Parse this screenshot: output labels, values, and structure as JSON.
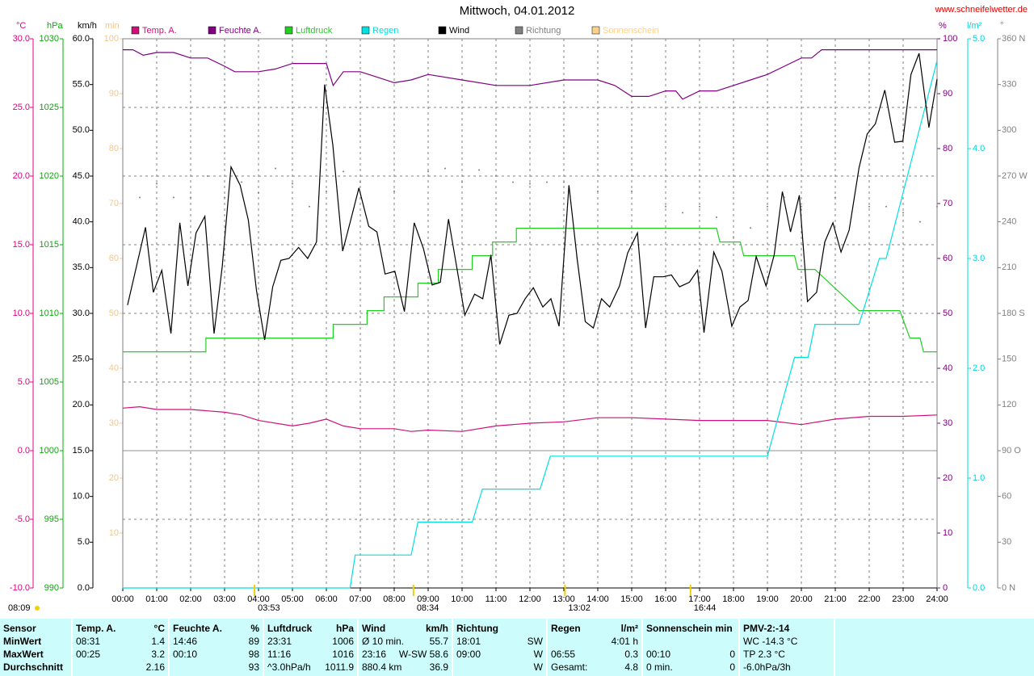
{
  "chart_data": {
    "type": "line",
    "title": "Mittwoch, 04.01.2012",
    "source": "www.schneifelwetter.de",
    "sunrise": "08:09",
    "xlim": [
      0,
      24
    ],
    "xticks": [
      {
        "value": 0,
        "label": "00:00"
      },
      {
        "value": 1,
        "label": "01:00"
      },
      {
        "value": 2,
        "label": "02:00"
      },
      {
        "value": 3,
        "label": "03:00"
      },
      {
        "value": 4,
        "label": "04:00"
      },
      {
        "value": 5,
        "label": "05:00"
      },
      {
        "value": 6,
        "label": "06:00"
      },
      {
        "value": 7,
        "label": "07:00"
      },
      {
        "value": 8,
        "label": "08:00"
      },
      {
        "value": 9,
        "label": "09:00"
      },
      {
        "value": 10,
        "label": "10:00"
      },
      {
        "value": 11,
        "label": "11:00"
      },
      {
        "value": 12,
        "label": "12:00"
      },
      {
        "value": 13,
        "label": "13:00"
      },
      {
        "value": 14,
        "label": "14:00"
      },
      {
        "value": 15,
        "label": "15:00"
      },
      {
        "value": 16,
        "label": "16:00"
      },
      {
        "value": 17,
        "label": "17:00"
      },
      {
        "value": 18,
        "label": "18:00"
      },
      {
        "value": 19,
        "label": "19:00"
      },
      {
        "value": 20,
        "label": "20:00"
      },
      {
        "value": 21,
        "label": "21:00"
      },
      {
        "value": 22,
        "label": "22:00"
      },
      {
        "value": 23,
        "label": "23:00"
      },
      {
        "value": 24,
        "label": "24:00"
      }
    ],
    "grid": true,
    "axes": [
      {
        "unit": "°C",
        "color": "#e0007f",
        "lim": [
          -10,
          30
        ],
        "ticks": [
          {
            "value": 30,
            "label": "30.0"
          },
          {
            "value": 25,
            "label": "25.0"
          },
          {
            "value": 20,
            "label": "20.0"
          },
          {
            "value": 15,
            "label": "15.0"
          },
          {
            "value": 10,
            "label": "10.0"
          },
          {
            "value": 5,
            "label": "5.0"
          },
          {
            "value": 0,
            "label": "0.0"
          },
          {
            "value": -5,
            "label": "-5.0"
          },
          {
            "value": -10,
            "label": "-10.0"
          }
        ]
      },
      {
        "unit": "hPa",
        "color": "#00b000",
        "lim": [
          990,
          1030
        ],
        "ticks": [
          1030,
          1025,
          1020,
          1015,
          1010,
          1005,
          1000,
          995,
          990
        ]
      },
      {
        "unit": "km/h",
        "color": "#000000",
        "lim": [
          0,
          60
        ],
        "ticks": [
          {
            "value": 60,
            "label": "60.0"
          },
          {
            "value": 55,
            "label": "55.0"
          },
          {
            "value": 50,
            "label": "50.0"
          },
          {
            "value": 45,
            "label": "45.0"
          },
          {
            "value": 40,
            "label": "40.0"
          },
          {
            "value": 35,
            "label": "35.0"
          },
          {
            "value": 30,
            "label": "30.0"
          },
          {
            "value": 25,
            "label": "25.0"
          },
          {
            "value": 20,
            "label": "20.0"
          },
          {
            "value": 15,
            "label": "15.0"
          },
          {
            "value": 10,
            "label": "10.0"
          },
          {
            "value": 5,
            "label": "5.0"
          },
          {
            "value": 0,
            "label": "0.0"
          }
        ]
      },
      {
        "unit": "min",
        "color": "#f0c890",
        "lim": [
          0,
          100
        ],
        "ticks": [
          100,
          90,
          80,
          70,
          60,
          50,
          40,
          30,
          20,
          10
        ]
      },
      {
        "unit": "%",
        "color": "#800080",
        "lim": [
          0,
          100
        ],
        "ticks": [
          100,
          90,
          80,
          70,
          60,
          50,
          40,
          30,
          20,
          10,
          0
        ]
      },
      {
        "unit": "l/m²",
        "color": "#00d8d8",
        "lim": [
          0,
          5
        ],
        "ticks": [
          {
            "value": 5,
            "label": "5.0"
          },
          {
            "value": 4,
            "label": "4.0"
          },
          {
            "value": 3,
            "label": "3.0"
          },
          {
            "value": 2,
            "label": "2.0"
          },
          {
            "value": 1,
            "label": "1.0"
          },
          {
            "value": 0,
            "label": "0.0"
          }
        ]
      },
      {
        "unit": "°",
        "color": "#808080",
        "lim": [
          0,
          360
        ],
        "ticks": [
          {
            "value": 360,
            "label": "360 N"
          },
          330,
          300,
          {
            "value": 270,
            "label": "270 W"
          },
          240,
          210,
          {
            "value": 180,
            "label": "180 S"
          },
          150,
          120,
          {
            "value": 90,
            "label": "90 O"
          },
          60,
          30,
          {
            "value": 0,
            "label": "0 N"
          }
        ]
      }
    ],
    "series": [
      {
        "name": "Temp. A.",
        "color": "#d0107a",
        "axis": "°C",
        "style": "line",
        "x": [
          0,
          0.5,
          1,
          1.5,
          2,
          2.5,
          3,
          3.5,
          4,
          5,
          5.5,
          6,
          6.5,
          7,
          8,
          8.5,
          9,
          10,
          11,
          12,
          13,
          14,
          15,
          16,
          17,
          18,
          19,
          20,
          21,
          22,
          23,
          24
        ],
        "values": [
          3.1,
          3.2,
          3.0,
          3.0,
          3.0,
          2.9,
          2.8,
          2.6,
          2.2,
          1.8,
          2.0,
          2.3,
          1.8,
          1.6,
          1.6,
          1.4,
          1.5,
          1.4,
          1.8,
          2.0,
          2.1,
          2.4,
          2.4,
          2.3,
          2.2,
          2.2,
          2.2,
          1.9,
          2.3,
          2.5,
          2.5,
          2.6
        ]
      },
      {
        "name": "Feuchte A.",
        "color": "#800080",
        "axis": "%",
        "style": "line",
        "x": [
          0,
          0.3,
          0.6,
          1,
          1.5,
          2,
          2.5,
          3,
          3.3,
          4,
          4.5,
          5,
          6,
          6.2,
          6.5,
          7,
          7.5,
          8,
          8.5,
          9,
          10,
          11,
          12,
          13,
          14,
          14.5,
          15,
          15.5,
          16,
          16.3,
          16.5,
          17,
          17.5,
          18,
          18.5,
          19,
          19.5,
          20,
          20.3,
          20.6,
          24
        ],
        "values": [
          98,
          98,
          97,
          97.5,
          97.5,
          96.5,
          96.5,
          95,
          94,
          94,
          94.5,
          95.5,
          95.5,
          91.5,
          94,
          94,
          93,
          92,
          92.5,
          93.5,
          92.5,
          91.5,
          91.5,
          92.5,
          92.5,
          91.5,
          89.5,
          89.5,
          90.5,
          90.5,
          89,
          90.5,
          90.5,
          91.5,
          92.5,
          93.5,
          95,
          96.5,
          96.5,
          98,
          98
        ]
      },
      {
        "name": "Luftdruck",
        "color": "#20d020",
        "axis": "hPa",
        "style": "line",
        "x": [
          0,
          2.45,
          2.45,
          6.2,
          6.2,
          7.2,
          7.2,
          7.7,
          7.7,
          8.7,
          8.7,
          9.3,
          9.3,
          10.3,
          10.3,
          10.9,
          10.9,
          11.6,
          11.6,
          17.5,
          17.6,
          18.2,
          18.3,
          19.8,
          19.9,
          20.4,
          21.7,
          22.9,
          23.2,
          23.5,
          23.6,
          24
        ],
        "values": [
          1007.2,
          1007.2,
          1008.2,
          1008.2,
          1009.2,
          1009.2,
          1010.2,
          1010.2,
          1011.2,
          1011.2,
          1012.2,
          1012.2,
          1013.2,
          1013.2,
          1014.2,
          1014.2,
          1015.2,
          1015.2,
          1016.2,
          1016.2,
          1015.2,
          1015.2,
          1014.2,
          1014.2,
          1013.2,
          1013.2,
          1010.2,
          1010.2,
          1008.2,
          1008.2,
          1007.2,
          1007.2
        ]
      },
      {
        "name": "Regen",
        "color": "#00e0e0",
        "axis": "l/m²",
        "style": "line",
        "x": [
          0,
          6.7,
          6.85,
          8.5,
          8.7,
          10.3,
          10.6,
          12.3,
          12.6,
          19,
          19.8,
          20.2,
          20.4,
          21.7,
          22.3,
          22.5,
          24
        ],
        "values": [
          0,
          0,
          0.3,
          0.3,
          0.6,
          0.6,
          0.9,
          0.9,
          1.2,
          1.2,
          2.1,
          2.1,
          2.4,
          2.4,
          3.0,
          3.0,
          4.8
        ]
      },
      {
        "name": "Wind",
        "color": "#000000",
        "axis": "km/h",
        "style": "line",
        "x": [
          0.14,
          0.67,
          0.9,
          1.15,
          1.42,
          1.68,
          1.92,
          2.16,
          2.42,
          2.69,
          2.93,
          3.19,
          3.46,
          3.7,
          3.94,
          4.18,
          4.42,
          4.66,
          4.9,
          5.18,
          5.45,
          5.71,
          5.95,
          6.19,
          6.48,
          6.72,
          6.96,
          7.25,
          7.49,
          7.73,
          8.02,
          8.3,
          8.59,
          8.86,
          9.12,
          9.36,
          9.6,
          9.84,
          10.08,
          10.37,
          10.61,
          10.85,
          11.11,
          11.38,
          11.62,
          11.86,
          12.1,
          12.38,
          12.62,
          12.86,
          13.15,
          13.39,
          13.63,
          13.87,
          14.11,
          14.35,
          14.64,
          14.88,
          15.17,
          15.41,
          15.65,
          15.93,
          16.17,
          16.41,
          16.7,
          16.94,
          17.13,
          17.42,
          17.66,
          17.95,
          18.19,
          18.43,
          18.67,
          18.96,
          19.2,
          19.44,
          19.68,
          19.94,
          20.18,
          20.45,
          20.69,
          20.93,
          21.17,
          21.41,
          21.7,
          21.94,
          22.18,
          22.46,
          22.75,
          22.99,
          23.23,
          23.47,
          23.76,
          24
        ],
        "values": [
          30.9,
          39.4,
          32.3,
          34.7,
          27.8,
          39.9,
          33,
          38.8,
          40.6,
          27.8,
          35.1,
          46,
          44,
          40.2,
          32.5,
          27.1,
          32.9,
          35.8,
          36,
          37.2,
          36,
          37.8,
          55,
          48.4,
          36.8,
          40.2,
          43.7,
          39.5,
          38.9,
          34.3,
          34.6,
          30.2,
          39.9,
          37.1,
          33.1,
          33.4,
          40.3,
          35.1,
          29.8,
          32.1,
          31.6,
          36.4,
          26.6,
          29.8,
          30,
          31.6,
          32.8,
          30.7,
          31.6,
          28.6,
          44,
          36,
          29.1,
          28.4,
          31.6,
          30.7,
          33,
          36.6,
          38.8,
          28.4,
          34,
          34,
          34.2,
          32.9,
          33.4,
          34.7,
          27.9,
          36.7,
          34.6,
          28.6,
          30.7,
          31.4,
          36.2,
          33,
          36.4,
          43.3,
          38.9,
          42.9,
          31.3,
          32.3,
          37.8,
          39.9,
          36.7,
          39.1,
          45.9,
          49.6,
          50.7,
          54.4,
          48.7,
          48.8,
          56.1,
          58.4,
          50.3,
          55.6
        ]
      },
      {
        "name": "Richtung",
        "color": "#808080",
        "axis": "°",
        "style": "dots",
        "x": [
          0.5,
          1,
          1.5,
          2,
          2.5,
          3,
          3.5,
          4,
          4.5,
          5,
          5.5,
          6,
          6.5,
          7,
          8,
          9,
          9.5,
          10,
          10.5,
          11,
          11.5,
          12,
          12.5,
          13,
          14,
          15,
          16,
          16.5,
          17,
          17.5,
          18,
          18.5,
          19,
          19.5,
          20,
          21,
          22,
          22.5,
          23,
          23.5,
          24
        ],
        "values": [
          256,
          265,
          256,
          256,
          270,
          256,
          266,
          259,
          275,
          265,
          250,
          260,
          273,
          266,
          260,
          273,
          275,
          266,
          274,
          270,
          266,
          265,
          266,
          266,
          260,
          260,
          250,
          246,
          250,
          243,
          230,
          236,
          250,
          256,
          250,
          256,
          250,
          250,
          246,
          240,
          250
        ]
      },
      {
        "name": "Sonnenschein",
        "color": "#ffd08a",
        "axis": "min",
        "style": "line",
        "x": [],
        "values": []
      }
    ],
    "sun_markers": [
      {
        "x": 3.883,
        "label": "03:53"
      },
      {
        "x": 8.567,
        "label": "08:34"
      },
      {
        "x": 13.033,
        "label": "13:02"
      },
      {
        "x": 16.733,
        "label": "16:44"
      }
    ]
  },
  "table": {
    "header": "Sensor",
    "row_labels": [
      "MinWert",
      "MaxWert",
      "Durchschnitt"
    ],
    "groups": [
      {
        "title": "Temp. A.",
        "unit": "°C",
        "rows": [
          [
            "08:31",
            "1.4"
          ],
          [
            "00:25",
            "3.2"
          ],
          [
            "2.16"
          ]
        ]
      },
      {
        "title": "Feuchte A.",
        "unit": "%",
        "rows": [
          [
            "14:46",
            "89"
          ],
          [
            "00:10",
            "98"
          ],
          [
            "93"
          ]
        ]
      },
      {
        "title": "Luftdruck",
        "unit": "hPa",
        "rows": [
          [
            "23:31",
            "1006"
          ],
          [
            "11:16",
            "1016"
          ],
          [
            "^3.0hPa/h",
            "1011.9"
          ]
        ]
      },
      {
        "title": "Wind",
        "unit": "km/h",
        "rows": [
          [
            "Ø 10 min.",
            "55.7"
          ],
          [
            "23:16",
            "W-SW 58.6"
          ],
          [
            "880.4 km",
            "36.9"
          ]
        ]
      },
      {
        "title": "Richtung",
        "rows": [
          [
            "18:01",
            "SW"
          ],
          [
            "09:00",
            "W"
          ],
          [
            "W"
          ]
        ]
      },
      {
        "title": "Regen",
        "unit": "l/m²",
        "rows": [
          [
            "4:01 h"
          ],
          [
            "06:55",
            "0.3"
          ],
          [
            "Gesamt:",
            "4.8"
          ]
        ]
      },
      {
        "title": "Sonnenschein min",
        "rows": [
          [],
          [
            "00:10",
            "0"
          ],
          [
            "0 min.",
            "0"
          ]
        ]
      },
      {
        "title": "PMV-2:-14",
        "rows": [
          [
            "WC -14.3 °C"
          ],
          [
            "TP 2.3 °C"
          ],
          [
            "-6.0hPa/3h"
          ]
        ]
      }
    ]
  }
}
